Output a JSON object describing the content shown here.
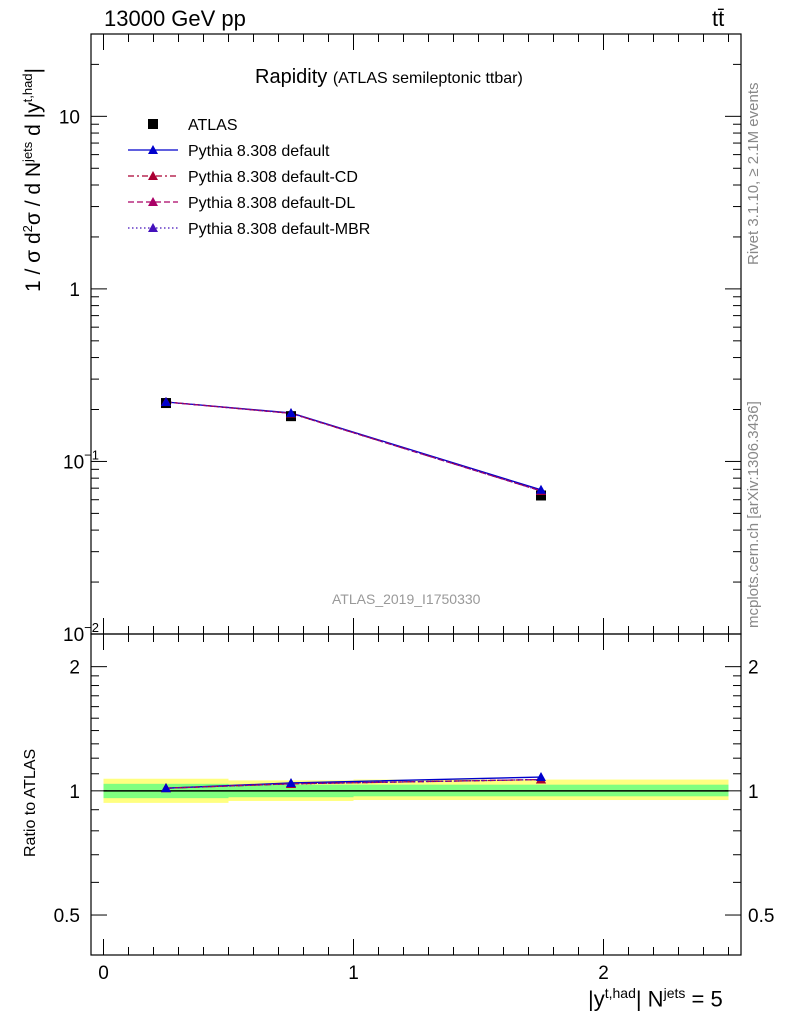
{
  "header": {
    "left": "13000 GeV pp",
    "right": "tt̄"
  },
  "side": {
    "top": "Rivet 3.1.10, ≥ 2.1M events",
    "bottom": "mcplots.cern.ch [arXiv:1306.3436]"
  },
  "colors": {
    "atlas": "#000000",
    "default": "#0000cc",
    "cd": "#aa0033",
    "dl": "#aa0066",
    "mbr": "#4411bb",
    "band_inner": "#80ff80",
    "band_outer": "#ffff80"
  },
  "chart_data": [
    {
      "type": "line",
      "panel": "main",
      "title": "Rapidity",
      "subtitle": "(ATLAS semileptonic ttbar)",
      "ylabel": "1 / σ d²σ / d N^jets d |y^t,had|",
      "ylabel_main": "1 / σ d",
      "ylabel_sup1": "2",
      "ylabel_mid": "σ / d N",
      "ylabel_sup2": "jets",
      "ylabel_end": " d |y",
      "ylabel_sup3": "t,had",
      "ylabel_close": "|",
      "yscale": "log",
      "ylim": [
        0.01,
        30
      ],
      "xlim": [
        -0.05,
        2.55
      ],
      "yticks": [
        {
          "v": 10,
          "label": "10"
        },
        {
          "v": 1,
          "label": "1"
        },
        {
          "v": 0.1,
          "label": "10",
          "exp": "−1"
        },
        {
          "v": 0.01,
          "label": "10",
          "exp": "−2"
        }
      ],
      "watermark": "ATLAS_2019_I1750330",
      "legend": [
        {
          "key": "atlas",
          "label": "ATLAS"
        },
        {
          "key": "default",
          "label": "Pythia 8.308 default"
        },
        {
          "key": "cd",
          "label": "Pythia 8.308 default-CD"
        },
        {
          "key": "dl",
          "label": "Pythia 8.308 default-DL"
        },
        {
          "key": "mbr",
          "label": "Pythia 8.308 default-MBR"
        }
      ],
      "x": [
        0.25,
        0.75,
        1.75
      ],
      "data": {
        "name": "ATLAS",
        "values": [
          0.218,
          0.183,
          0.0635
        ]
      },
      "series": [
        {
          "key": "default",
          "name": "Pythia 8.308 default",
          "values": [
            0.221,
            0.191,
            0.0685
          ]
        },
        {
          "key": "cd",
          "name": "Pythia 8.308 default-CD",
          "values": [
            0.221,
            0.19,
            0.0675
          ]
        },
        {
          "key": "dl",
          "name": "Pythia 8.308 default-DL",
          "values": [
            0.221,
            0.19,
            0.0675
          ]
        },
        {
          "key": "mbr",
          "name": "Pythia 8.308 default-MBR",
          "values": [
            0.221,
            0.19,
            0.0675
          ]
        }
      ]
    },
    {
      "type": "line",
      "panel": "ratio",
      "ylabel": "Ratio to ATLAS",
      "xlabel": "|y^t,had| N^jets = 5",
      "xlabel_a": "|y",
      "xlabel_sup1": "t,had",
      "xlabel_b": "| N",
      "xlabel_sup2": "jets",
      "xlabel_c": " = 5",
      "yscale": "log",
      "ylim": [
        0.4,
        2.4
      ],
      "yticks": [
        {
          "v": 0.5,
          "label": "0.5"
        },
        {
          "v": 1,
          "label": "1"
        },
        {
          "v": 2,
          "label": "2"
        }
      ],
      "xticks": [
        {
          "v": 0,
          "label": "0"
        },
        {
          "v": 1,
          "label": "1"
        },
        {
          "v": 2,
          "label": "2"
        }
      ],
      "bands": [
        {
          "x0": 0,
          "x1": 0.5,
          "inner": [
            0.96,
            1.04
          ],
          "outer": [
            0.935,
            1.07
          ]
        },
        {
          "x0": 0.5,
          "x1": 1.0,
          "inner": [
            0.965,
            1.035
          ],
          "outer": [
            0.945,
            1.06
          ]
        },
        {
          "x0": 1.0,
          "x1": 2.5,
          "inner": [
            0.97,
            1.035
          ],
          "outer": [
            0.95,
            1.065
          ]
        }
      ],
      "x": [
        0.25,
        0.75,
        1.75
      ],
      "series": [
        {
          "key": "default",
          "name": "Pythia 8.308 default",
          "values": [
            1.015,
            1.045,
            1.08
          ]
        },
        {
          "key": "cd",
          "name": "Pythia 8.308 default-CD",
          "values": [
            1.015,
            1.04,
            1.065
          ]
        },
        {
          "key": "dl",
          "name": "Pythia 8.308 default-DL",
          "values": [
            1.015,
            1.04,
            1.065
          ]
        },
        {
          "key": "mbr",
          "name": "Pythia 8.308 default-MBR",
          "values": [
            1.015,
            1.04,
            1.065
          ]
        }
      ]
    }
  ]
}
